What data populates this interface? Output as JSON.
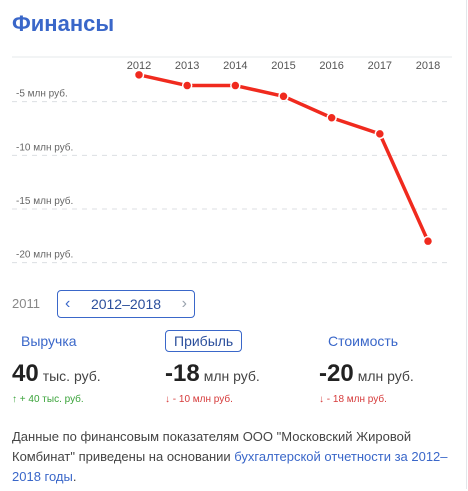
{
  "header": {
    "title": "Финансы"
  },
  "chart_data": {
    "type": "line",
    "x": [
      "2012",
      "2013",
      "2014",
      "2015",
      "2016",
      "2017",
      "2018"
    ],
    "series": [
      {
        "values": [
          -2.5,
          -3.5,
          -3.5,
          -4.5,
          -6.5,
          -8,
          -18
        ]
      }
    ],
    "ylim": [
      -20.5,
      0
    ],
    "yticks": [
      -5,
      -10,
      -15,
      -20
    ],
    "ytick_labels": [
      "-5 млн руб.",
      "-10 млн руб.",
      "-15 млн руб.",
      "-20 млн руб."
    ],
    "line_color": "#f02a1e",
    "grid": "horizontal dashed"
  },
  "period": {
    "prev_year": "2011",
    "label": "2012–2018"
  },
  "metrics": [
    {
      "tab": "Выручка",
      "value": "40",
      "unit": "тыс. руб.",
      "arrow": "↑",
      "delta": "+ 40 тыс. руб.",
      "trend": "up",
      "active": false
    },
    {
      "tab": "Прибыль",
      "value": "-18",
      "unit": "млн руб.",
      "arrow": "↓",
      "delta": "- 10 млн руб.",
      "trend": "down",
      "active": true
    },
    {
      "tab": "Стоимость",
      "value": "-20",
      "unit": "млн руб.",
      "arrow": "↓",
      "delta": "- 18 млн руб.",
      "trend": "down",
      "active": false
    }
  ],
  "note": {
    "text": "Данные по финансовым показателям ООО \"Московский Жировой Комбинат\" приведены на основании ",
    "link": "бухгалтерской отчетности за 2012–2018 годы",
    "end": "."
  },
  "colors": {
    "accent": "#3a67c9",
    "up": "#3aa33a",
    "down": "#d63b3b"
  }
}
